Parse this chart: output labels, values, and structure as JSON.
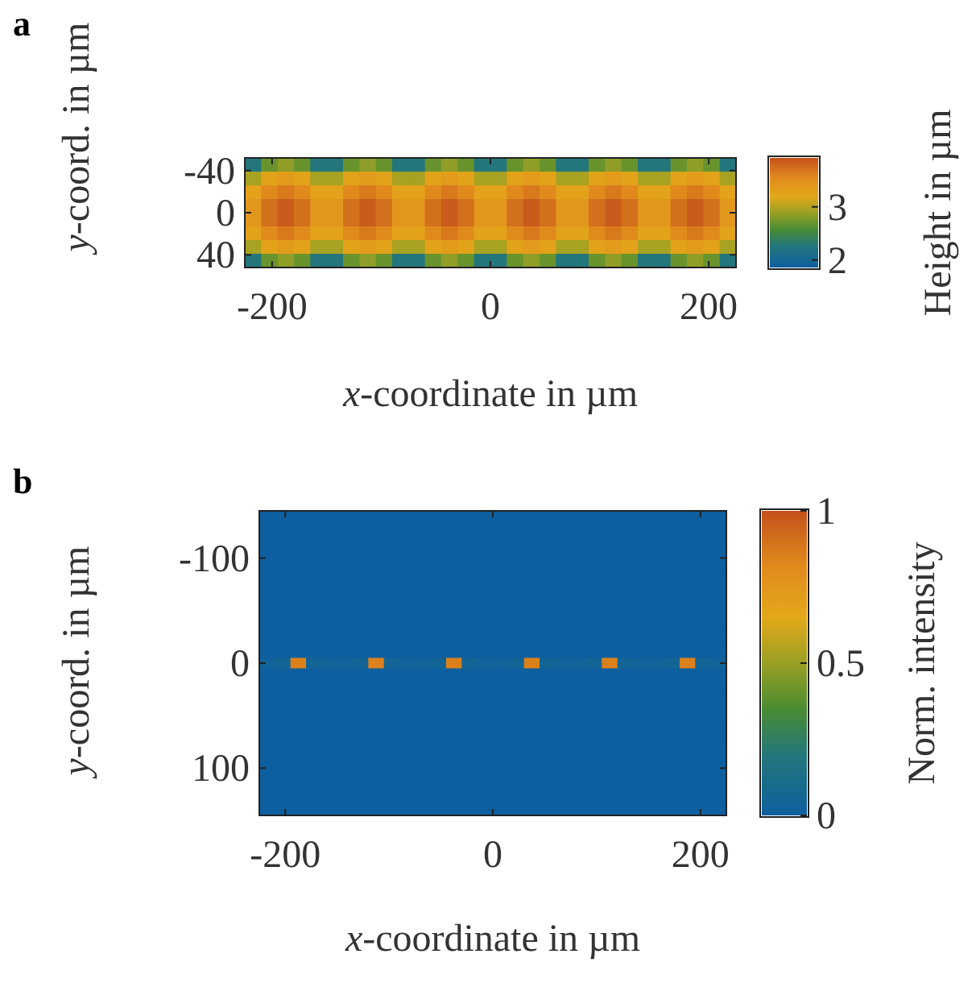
{
  "chart_data": [
    {
      "type": "heatmap",
      "annotations": [
        "a"
      ],
      "xlabel": "x-coordinate in µm",
      "ylabel": "y-coord. in µm",
      "clabel": "Height in µm",
      "x": [
        -217.5,
        -202.5,
        -187.5,
        -172.5,
        -157.5,
        -142.5,
        -127.5,
        -112.5,
        -97.5,
        -82.5,
        -67.5,
        -52.5,
        -37.5,
        -22.5,
        -7.5,
        7.5,
        22.5,
        37.5,
        52.5,
        67.5,
        82.5,
        97.5,
        112.5,
        127.5,
        142.5,
        157.5,
        172.5,
        187.5,
        202.5,
        217.5
      ],
      "y": [
        -45.5,
        -32.5,
        -19.5,
        -6.5,
        6.5,
        19.5,
        32.5,
        45.5
      ],
      "cells": [
        [
          2.25,
          2.7,
          2.85,
          2.7,
          2.25,
          2.25,
          2.7,
          2.85,
          2.7,
          2.25,
          2.25,
          2.7,
          2.85,
          2.7,
          2.25,
          2.25,
          2.7,
          2.85,
          2.7,
          2.25,
          2.25,
          2.7,
          2.85,
          2.7,
          2.25,
          2.25,
          2.7,
          2.85,
          2.7,
          2.25
        ],
        [
          2.95,
          3.27,
          3.35,
          3.27,
          2.95,
          2.95,
          3.27,
          3.35,
          3.27,
          2.95,
          2.95,
          3.27,
          3.35,
          3.27,
          2.95,
          2.95,
          3.27,
          3.35,
          3.27,
          2.95,
          2.95,
          3.27,
          3.35,
          3.27,
          2.95,
          2.95,
          3.27,
          3.35,
          3.27,
          2.95
        ],
        [
          3.27,
          3.55,
          3.66,
          3.55,
          3.27,
          3.27,
          3.55,
          3.66,
          3.55,
          3.27,
          3.27,
          3.55,
          3.66,
          3.55,
          3.27,
          3.27,
          3.55,
          3.66,
          3.55,
          3.27,
          3.27,
          3.55,
          3.66,
          3.55,
          3.27,
          3.27,
          3.55,
          3.66,
          3.55,
          3.27
        ],
        [
          3.4,
          3.72,
          3.85,
          3.72,
          3.4,
          3.4,
          3.72,
          3.85,
          3.72,
          3.4,
          3.4,
          3.72,
          3.85,
          3.72,
          3.4,
          3.4,
          3.72,
          3.85,
          3.72,
          3.4,
          3.4,
          3.72,
          3.85,
          3.72,
          3.4,
          3.4,
          3.72,
          3.85,
          3.72,
          3.4
        ],
        [
          3.4,
          3.72,
          3.85,
          3.72,
          3.4,
          3.4,
          3.72,
          3.85,
          3.72,
          3.4,
          3.4,
          3.72,
          3.85,
          3.72,
          3.4,
          3.4,
          3.72,
          3.85,
          3.72,
          3.4,
          3.4,
          3.72,
          3.85,
          3.72,
          3.4,
          3.4,
          3.72,
          3.85,
          3.72,
          3.4
        ],
        [
          3.27,
          3.55,
          3.66,
          3.55,
          3.27,
          3.27,
          3.55,
          3.66,
          3.55,
          3.27,
          3.27,
          3.55,
          3.66,
          3.55,
          3.27,
          3.27,
          3.55,
          3.66,
          3.55,
          3.27,
          3.27,
          3.55,
          3.66,
          3.55,
          3.27,
          3.27,
          3.55,
          3.66,
          3.55,
          3.27
        ],
        [
          2.95,
          3.27,
          3.35,
          3.27,
          2.95,
          2.95,
          3.27,
          3.35,
          3.27,
          2.95,
          2.95,
          3.27,
          3.35,
          3.27,
          2.95,
          2.95,
          3.27,
          3.35,
          3.27,
          2.95,
          2.95,
          3.27,
          3.35,
          3.27,
          2.95,
          2.95,
          3.27,
          3.35,
          3.27,
          2.95
        ],
        [
          2.25,
          2.7,
          2.85,
          2.7,
          2.25,
          2.25,
          2.7,
          2.85,
          2.7,
          2.25,
          2.25,
          2.7,
          2.85,
          2.7,
          2.25,
          2.25,
          2.7,
          2.85,
          2.7,
          2.25,
          2.25,
          2.7,
          2.85,
          2.7,
          2.25,
          2.25,
          2.7,
          2.85,
          2.7,
          2.25
        ]
      ],
      "xlim": [
        -225,
        225
      ],
      "xticks": [
        -200,
        0,
        200
      ],
      "ylim": [
        52,
        -52
      ],
      "yticks": [
        -40,
        0,
        40
      ],
      "clim": [
        1.86,
        3.92
      ],
      "cticks": [
        2,
        3
      ]
    },
    {
      "type": "heatmap",
      "annotations": [
        "b"
      ],
      "xlabel": "x-coordinate in µm",
      "ylabel": "y-coord. in µm",
      "clabel": "Norm. intensity",
      "x": [
        -217.5,
        -202.5,
        -187.5,
        -172.5,
        -157.5,
        -142.5,
        -127.5,
        -112.5,
        -97.5,
        -82.5,
        -67.5,
        -52.5,
        -37.5,
        -22.5,
        -7.5,
        7.5,
        22.5,
        37.5,
        52.5,
        67.5,
        82.5,
        97.5,
        112.5,
        127.5,
        142.5,
        157.5,
        172.5,
        187.5,
        202.5,
        217.5
      ],
      "y": [
        -140,
        -130,
        -120,
        -110,
        -100,
        -90,
        -80,
        -70,
        -60,
        -50,
        -40,
        -30,
        -20,
        -10,
        0,
        10,
        20,
        30,
        40,
        50,
        60,
        70,
        80,
        90,
        100,
        110,
        120,
        130,
        140
      ],
      "cells": [
        [
          0,
          0,
          0,
          0,
          0,
          0,
          0,
          0,
          0,
          0,
          0,
          0,
          0,
          0,
          0,
          0,
          0,
          0,
          0,
          0,
          0,
          0,
          0,
          0,
          0,
          0,
          0,
          0,
          0,
          0
        ],
        [
          0,
          0,
          0,
          0,
          0,
          0,
          0,
          0,
          0,
          0,
          0,
          0,
          0,
          0,
          0,
          0,
          0,
          0,
          0,
          0,
          0,
          0,
          0,
          0,
          0,
          0,
          0,
          0,
          0,
          0
        ],
        [
          0,
          0,
          0,
          0,
          0,
          0,
          0,
          0,
          0,
          0,
          0,
          0,
          0,
          0,
          0,
          0,
          0,
          0,
          0,
          0,
          0,
          0,
          0,
          0,
          0,
          0,
          0,
          0,
          0,
          0
        ],
        [
          0,
          0,
          0,
          0,
          0,
          0,
          0,
          0,
          0,
          0,
          0,
          0,
          0,
          0,
          0,
          0,
          0,
          0,
          0,
          0,
          0,
          0,
          0,
          0,
          0,
          0,
          0,
          0,
          0,
          0
        ],
        [
          0,
          0,
          0,
          0,
          0,
          0,
          0,
          0,
          0,
          0,
          0,
          0,
          0,
          0,
          0,
          0,
          0,
          0,
          0,
          0,
          0,
          0,
          0,
          0,
          0,
          0,
          0,
          0,
          0,
          0
        ],
        [
          0,
          0,
          0,
          0,
          0,
          0,
          0,
          0,
          0,
          0,
          0,
          0,
          0,
          0,
          0,
          0,
          0,
          0,
          0,
          0,
          0,
          0,
          0,
          0,
          0,
          0,
          0,
          0,
          0,
          0
        ],
        [
          0,
          0,
          0,
          0,
          0,
          0,
          0,
          0,
          0,
          0,
          0,
          0,
          0,
          0,
          0,
          0,
          0,
          0,
          0,
          0,
          0,
          0,
          0,
          0,
          0,
          0,
          0,
          0,
          0,
          0
        ],
        [
          0,
          0,
          0,
          0,
          0,
          0,
          0,
          0,
          0,
          0,
          0,
          0,
          0,
          0,
          0,
          0,
          0,
          0,
          0,
          0,
          0,
          0,
          0,
          0,
          0,
          0,
          0,
          0,
          0,
          0
        ],
        [
          0,
          0,
          0,
          0,
          0,
          0,
          0,
          0,
          0,
          0,
          0,
          0,
          0,
          0,
          0,
          0,
          0,
          0,
          0,
          0,
          0,
          0,
          0,
          0,
          0,
          0,
          0,
          0,
          0,
          0
        ],
        [
          0,
          0,
          0,
          0,
          0,
          0,
          0,
          0,
          0,
          0,
          0,
          0,
          0,
          0,
          0,
          0,
          0,
          0,
          0,
          0,
          0,
          0,
          0,
          0,
          0,
          0,
          0,
          0,
          0,
          0
        ],
        [
          0,
          0,
          0,
          0,
          0,
          0,
          0,
          0,
          0,
          0,
          0,
          0,
          0,
          0,
          0,
          0,
          0,
          0,
          0,
          0,
          0,
          0,
          0,
          0,
          0,
          0,
          0,
          0,
          0,
          0
        ],
        [
          0,
          0,
          0,
          0,
          0,
          0,
          0,
          0,
          0,
          0,
          0,
          0,
          0,
          0,
          0,
          0,
          0,
          0,
          0,
          0,
          0,
          0,
          0,
          0,
          0,
          0,
          0,
          0,
          0,
          0
        ],
        [
          0,
          0,
          0,
          0,
          0,
          0,
          0,
          0,
          0,
          0,
          0,
          0,
          0,
          0,
          0,
          0,
          0,
          0,
          0,
          0,
          0,
          0,
          0,
          0,
          0,
          0,
          0,
          0,
          0,
          0
        ],
        [
          0,
          0,
          0,
          0,
          0,
          0,
          0,
          0,
          0,
          0,
          0,
          0,
          0,
          0,
          0,
          0,
          0,
          0,
          0,
          0,
          0,
          0,
          0,
          0,
          0,
          0,
          0,
          0,
          0,
          0
        ],
        [
          0.03,
          0.05,
          0.85,
          0.05,
          0.03,
          0.03,
          0.05,
          0.85,
          0.05,
          0.03,
          0.03,
          0.05,
          0.85,
          0.05,
          0.03,
          0.03,
          0.05,
          0.85,
          0.05,
          0.03,
          0.03,
          0.05,
          0.85,
          0.05,
          0.03,
          0.03,
          0.05,
          0.85,
          0.05,
          0.03
        ],
        [
          0,
          0,
          0,
          0,
          0,
          0,
          0,
          0,
          0,
          0,
          0,
          0,
          0,
          0,
          0,
          0,
          0,
          0,
          0,
          0,
          0,
          0,
          0,
          0,
          0,
          0,
          0,
          0,
          0,
          0
        ],
        [
          0,
          0,
          0,
          0,
          0,
          0,
          0,
          0,
          0,
          0,
          0,
          0,
          0,
          0,
          0,
          0,
          0,
          0,
          0,
          0,
          0,
          0,
          0,
          0,
          0,
          0,
          0,
          0,
          0,
          0
        ],
        [
          0,
          0,
          0,
          0,
          0,
          0,
          0,
          0,
          0,
          0,
          0,
          0,
          0,
          0,
          0,
          0,
          0,
          0,
          0,
          0,
          0,
          0,
          0,
          0,
          0,
          0,
          0,
          0,
          0,
          0
        ],
        [
          0,
          0,
          0,
          0,
          0,
          0,
          0,
          0,
          0,
          0,
          0,
          0,
          0,
          0,
          0,
          0,
          0,
          0,
          0,
          0,
          0,
          0,
          0,
          0,
          0,
          0,
          0,
          0,
          0,
          0
        ],
        [
          0,
          0,
          0,
          0,
          0,
          0,
          0,
          0,
          0,
          0,
          0,
          0,
          0,
          0,
          0,
          0,
          0,
          0,
          0,
          0,
          0,
          0,
          0,
          0,
          0,
          0,
          0,
          0,
          0,
          0
        ],
        [
          0,
          0,
          0,
          0,
          0,
          0,
          0,
          0,
          0,
          0,
          0,
          0,
          0,
          0,
          0,
          0,
          0,
          0,
          0,
          0,
          0,
          0,
          0,
          0,
          0,
          0,
          0,
          0,
          0,
          0
        ],
        [
          0,
          0,
          0,
          0,
          0,
          0,
          0,
          0,
          0,
          0,
          0,
          0,
          0,
          0,
          0,
          0,
          0,
          0,
          0,
          0,
          0,
          0,
          0,
          0,
          0,
          0,
          0,
          0,
          0,
          0
        ],
        [
          0,
          0,
          0,
          0,
          0,
          0,
          0,
          0,
          0,
          0,
          0,
          0,
          0,
          0,
          0,
          0,
          0,
          0,
          0,
          0,
          0,
          0,
          0,
          0,
          0,
          0,
          0,
          0,
          0,
          0
        ],
        [
          0,
          0,
          0,
          0,
          0,
          0,
          0,
          0,
          0,
          0,
          0,
          0,
          0,
          0,
          0,
          0,
          0,
          0,
          0,
          0,
          0,
          0,
          0,
          0,
          0,
          0,
          0,
          0,
          0,
          0
        ],
        [
          0,
          0,
          0,
          0,
          0,
          0,
          0,
          0,
          0,
          0,
          0,
          0,
          0,
          0,
          0,
          0,
          0,
          0,
          0,
          0,
          0,
          0,
          0,
          0,
          0,
          0,
          0,
          0,
          0,
          0
        ],
        [
          0,
          0,
          0,
          0,
          0,
          0,
          0,
          0,
          0,
          0,
          0,
          0,
          0,
          0,
          0,
          0,
          0,
          0,
          0,
          0,
          0,
          0,
          0,
          0,
          0,
          0,
          0,
          0,
          0,
          0
        ],
        [
          0,
          0,
          0,
          0,
          0,
          0,
          0,
          0,
          0,
          0,
          0,
          0,
          0,
          0,
          0,
          0,
          0,
          0,
          0,
          0,
          0,
          0,
          0,
          0,
          0,
          0,
          0,
          0,
          0,
          0
        ],
        [
          0,
          0,
          0,
          0,
          0,
          0,
          0,
          0,
          0,
          0,
          0,
          0,
          0,
          0,
          0,
          0,
          0,
          0,
          0,
          0,
          0,
          0,
          0,
          0,
          0,
          0,
          0,
          0,
          0,
          0
        ],
        [
          0,
          0,
          0,
          0,
          0,
          0,
          0,
          0,
          0,
          0,
          0,
          0,
          0,
          0,
          0,
          0,
          0,
          0,
          0,
          0,
          0,
          0,
          0,
          0,
          0,
          0,
          0,
          0,
          0,
          0
        ]
      ],
      "xlim": [
        -225,
        225
      ],
      "xticks": [
        -200,
        0,
        200
      ],
      "ylim": [
        145,
        -145
      ],
      "yticks": [
        {
          "value": -100,
          "label": "-100"
        },
        0,
        {
          "value": 100,
          "label": "100"
        }
      ],
      "clim": [
        0,
        1
      ],
      "cticks": [
        0,
        0.5,
        1
      ]
    }
  ]
}
